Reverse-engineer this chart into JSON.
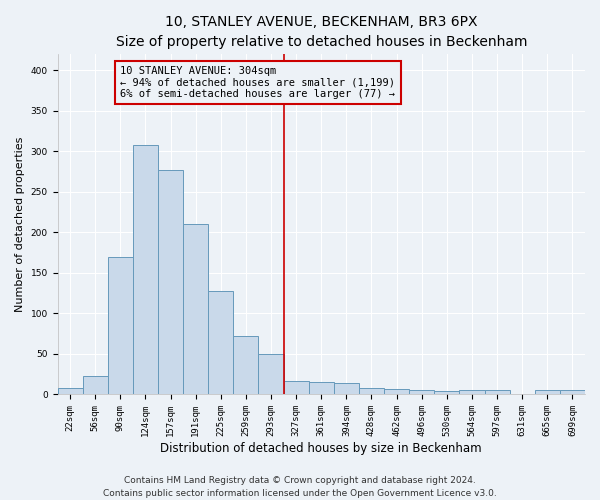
{
  "title": "10, STANLEY AVENUE, BECKENHAM, BR3 6PX",
  "subtitle": "Size of property relative to detached houses in Beckenham",
  "xlabel": "Distribution of detached houses by size in Beckenham",
  "ylabel": "Number of detached properties",
  "bar_labels": [
    "22sqm",
    "56sqm",
    "90sqm",
    "124sqm",
    "157sqm",
    "191sqm",
    "225sqm",
    "259sqm",
    "293sqm",
    "327sqm",
    "361sqm",
    "394sqm",
    "428sqm",
    "462sqm",
    "496sqm",
    "530sqm",
    "564sqm",
    "597sqm",
    "631sqm",
    "665sqm",
    "699sqm"
  ],
  "bar_values": [
    8,
    23,
    170,
    308,
    277,
    210,
    127,
    72,
    50,
    16,
    15,
    14,
    8,
    7,
    5,
    4,
    5,
    5,
    1,
    5,
    5
  ],
  "bar_color": "#c9d9ea",
  "bar_edge_color": "#6699bb",
  "vline_x_idx": 8.5,
  "vline_color": "#cc0000",
  "ann_line1": "10 STANLEY AVENUE: 304sqm",
  "ann_line2": "← 94% of detached houses are smaller (1,199)",
  "ann_line3": "6% of semi-detached houses are larger (77) →",
  "ann_box_edge_color": "#cc0000",
  "ylim": [
    0,
    420
  ],
  "yticks": [
    0,
    50,
    100,
    150,
    200,
    250,
    300,
    350,
    400
  ],
  "footer1": "Contains HM Land Registry data © Crown copyright and database right 2024.",
  "footer2": "Contains public sector information licensed under the Open Government Licence v3.0.",
  "bg_color": "#edf2f7",
  "grid_color": "#ffffff",
  "title_fontsize": 10,
  "subtitle_fontsize": 8.5,
  "xlabel_fontsize": 8.5,
  "ylabel_fontsize": 8,
  "tick_fontsize": 6.5,
  "ann_fontsize": 7.5,
  "footer_fontsize": 6.5
}
